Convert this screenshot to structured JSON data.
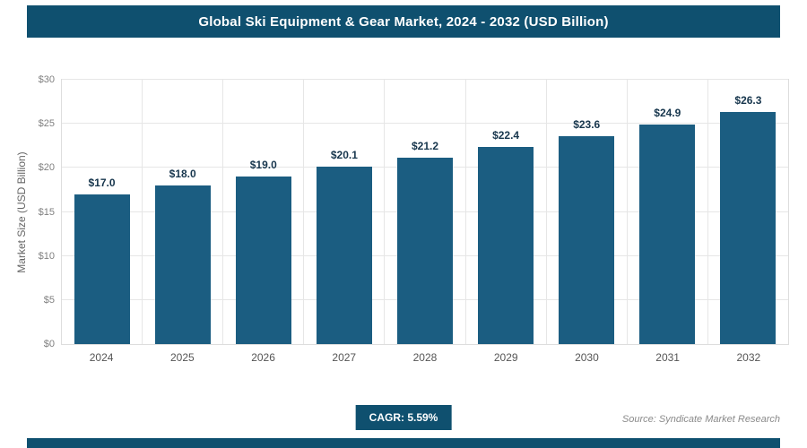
{
  "header": {
    "title": "Global Ski Equipment & Gear Market, 2024 - 2032 (USD Billion)"
  },
  "chart_data": {
    "type": "bar",
    "title": "Global Ski Equipment & Gear Market, 2024 - 2032 (USD Billion)",
    "categories": [
      "2024",
      "2025",
      "2026",
      "2027",
      "2028",
      "2029",
      "2030",
      "2031",
      "2032"
    ],
    "values": [
      17.0,
      18.0,
      19.0,
      20.1,
      21.2,
      22.4,
      23.6,
      24.9,
      26.3
    ],
    "value_labels": [
      "$17.0",
      "$18.0",
      "$19.0",
      "$20.1",
      "$21.2",
      "$22.4",
      "$23.6",
      "$24.9",
      "$26.3"
    ],
    "xlabel": "",
    "ylabel": "Market Size (USD Billion)",
    "ylim": [
      0,
      30
    ],
    "yticks": [
      0,
      5,
      10,
      15,
      20,
      25,
      30
    ],
    "ytick_labels": [
      "$0",
      "$5",
      "$10",
      "$15",
      "$20",
      "$25",
      "$30"
    ],
    "grid": true,
    "legend": false
  },
  "footer": {
    "cagr_label": "CAGR: 5.59%",
    "source": "Source: Syndicate Market Research"
  },
  "colors": {
    "navy": "#0f506f",
    "bar": "#1b5d81",
    "value_label": "#17364d",
    "grid": "#e6e6e6",
    "tick": "#808080",
    "axis_title": "#666666",
    "xtick": "#555555",
    "source": "#8a8a8a",
    "plot_border": "#dddddd"
  }
}
